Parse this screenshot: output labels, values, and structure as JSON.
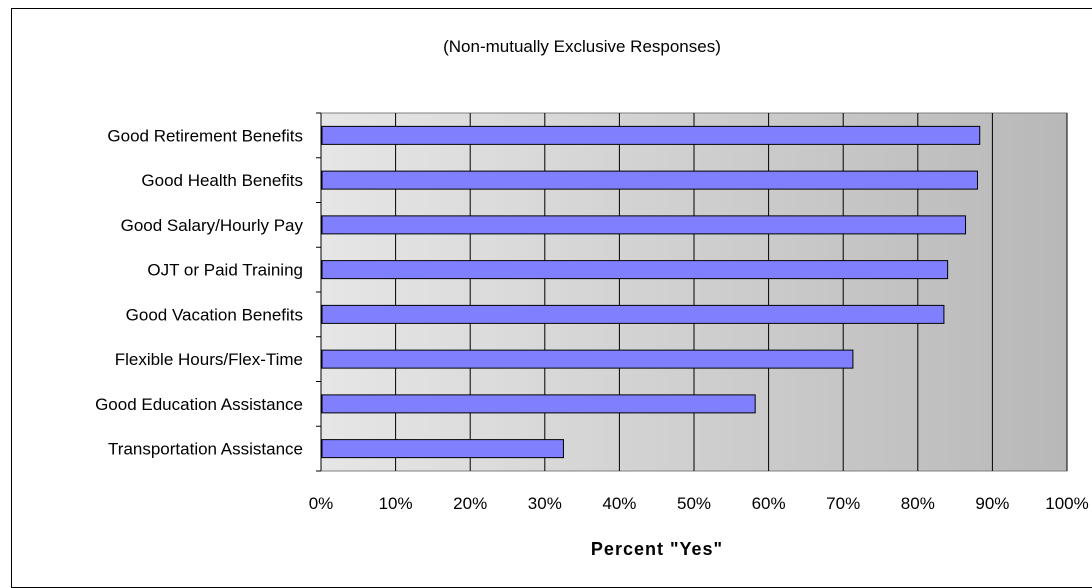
{
  "chart_data": {
    "type": "bar",
    "orientation": "horizontal",
    "title": "",
    "subtitle": "(Non-mutually Exclusive Responses)",
    "xlabel": "Percent \"Yes\"",
    "ylabel": "",
    "categories": [
      "Good Retirement Benefits",
      "Good Health Benefits",
      "Good Salary/Hourly Pay",
      "OJT or Paid Training",
      "Good Vacation Benefits",
      "Flexible Hours/Flex-Time",
      "Good Education Assistance",
      "Transportation Assistance"
    ],
    "values": [
      88.3,
      88.0,
      86.4,
      84.0,
      83.5,
      71.3,
      58.2,
      32.5
    ],
    "xlim": [
      0,
      100
    ],
    "x_ticks": [
      "0%",
      "10%",
      "20%",
      "30%",
      "40%",
      "50%",
      "60%",
      "70%",
      "80%",
      "90%",
      "100%"
    ],
    "grid": true,
    "legend": "none",
    "colors": {
      "bar_fill": "#8080FF",
      "bar_stroke": "#000000",
      "plot_bg_light": "#E6E6E6",
      "plot_bg_dark": "#B8B8B8",
      "gridline": "#000000"
    }
  }
}
